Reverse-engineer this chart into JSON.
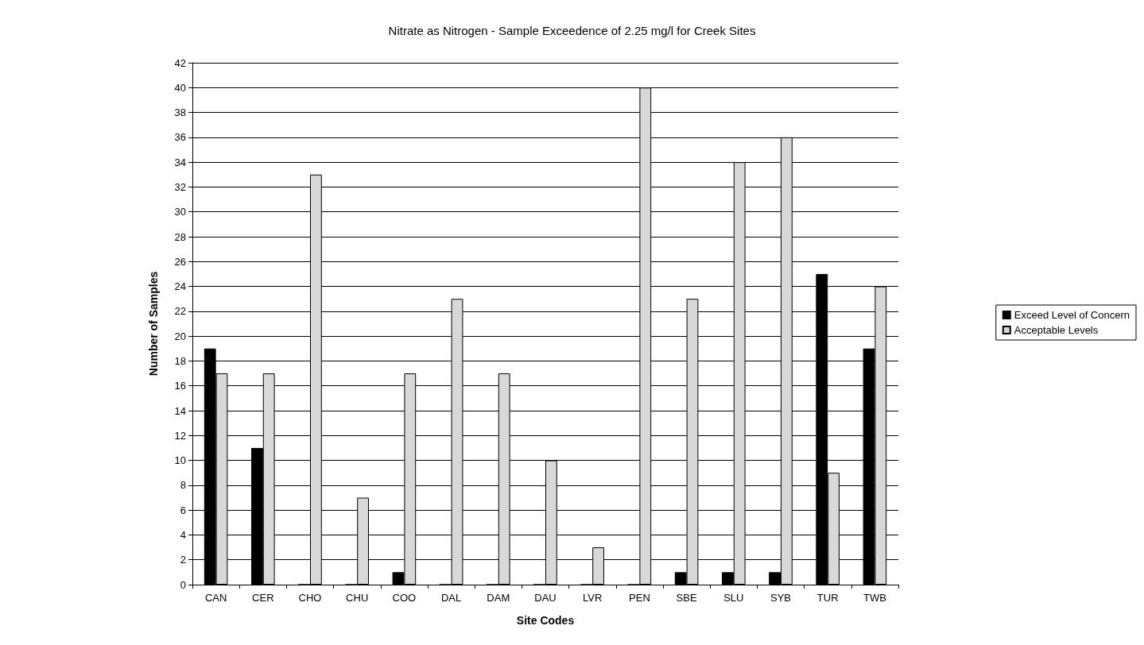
{
  "chart_data": {
    "type": "bar",
    "title": "Nitrate as Nitrogen - Sample Exceedence of 2.25 mg/l for Creek Sites",
    "xlabel": "Site Codes",
    "ylabel": "Number of Samples",
    "categories": [
      "CAN",
      "CER",
      "CHO",
      "CHU",
      "COO",
      "DAL",
      "DAM",
      "DAU",
      "LVR",
      "PEN",
      "SBE",
      "SLU",
      "SYB",
      "TUR",
      "TWB"
    ],
    "series": [
      {
        "name": "Exceed Level of Concern",
        "color": "#000000",
        "values": [
          19,
          11,
          0,
          0,
          1,
          0,
          0,
          0,
          0,
          0,
          1,
          1,
          1,
          25,
          19
        ]
      },
      {
        "name": "Acceptable Levels",
        "color": "#d8d8d8",
        "values": [
          17,
          17,
          33,
          7,
          17,
          23,
          17,
          10,
          3,
          40,
          23,
          34,
          36,
          9,
          24
        ]
      }
    ],
    "ylim": [
      0,
      42
    ],
    "yticks": [
      0,
      2,
      4,
      6,
      8,
      10,
      12,
      14,
      16,
      18,
      20,
      22,
      24,
      26,
      28,
      30,
      32,
      34,
      36,
      38,
      40,
      42
    ],
    "grid": "y",
    "legend": "right"
  }
}
